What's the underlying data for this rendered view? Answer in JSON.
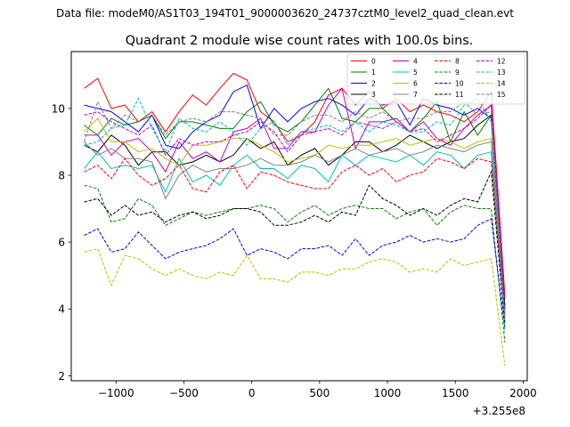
{
  "figure": {
    "suptitle": "Data file: modeM0/AS1T03_194T01_9000003620_24737cztM0_level2_quad_clean.evt"
  },
  "chart_data": {
    "type": "line",
    "title": "Quadrant 2 module wise count rates with 100.0s bins.",
    "xlabel": "",
    "ylabel": "",
    "x_offset_label": "+3.255e8",
    "xlim": [
      -1330,
      2030
    ],
    "ylim": [
      1.85,
      11.7
    ],
    "xticks": [
      -1000,
      -500,
      0,
      500,
      1000,
      1500,
      2000
    ],
    "xtick_labels": [
      "−1000",
      "−500",
      "0",
      "500",
      "1000",
      "1500",
      "2000"
    ],
    "yticks": [
      2,
      4,
      6,
      8,
      10
    ],
    "ytick_labels": [
      "2",
      "4",
      "6",
      "8",
      "10"
    ],
    "grid": false,
    "legend_position": "top-right",
    "x": [
      -1235,
      -1135,
      -1035,
      -935,
      -835,
      -735,
      -635,
      -535,
      -435,
      -335,
      -235,
      -135,
      -35,
      65,
      165,
      265,
      365,
      465,
      565,
      665,
      765,
      865,
      965,
      1065,
      1165,
      1265,
      1365,
      1465,
      1565,
      1665,
      1765,
      1865
    ],
    "series": [
      {
        "name": "0",
        "color": "#ff0000",
        "dash": false,
        "values": [
          10.6,
          10.9,
          10.0,
          10.1,
          9.6,
          9.9,
          9.3,
          9.9,
          10.4,
          10.1,
          10.6,
          11.05,
          10.85,
          9.9,
          9.6,
          9.0,
          9.2,
          9.6,
          10.4,
          10.6,
          10.1,
          10.5,
          10.0,
          10.3,
          9.9,
          10.1,
          9.9,
          9.8,
          9.6,
          9.9,
          10.5,
          4.4
        ]
      },
      {
        "name": "1",
        "color": "#008000",
        "dash": false,
        "values": [
          9.5,
          9.2,
          9.7,
          9.5,
          9.6,
          9.8,
          9.1,
          9.6,
          9.6,
          9.5,
          9.4,
          9.4,
          9.9,
          10.2,
          9.5,
          9.3,
          9.6,
          10.1,
          10.6,
          9.7,
          9.6,
          10.0,
          10.0,
          9.6,
          9.3,
          9.7,
          10.2,
          9.0,
          9.9,
          9.2,
          9.8,
          3.9
        ]
      },
      {
        "name": "2",
        "color": "#0000ff",
        "dash": false,
        "values": [
          10.1,
          10.0,
          9.9,
          9.6,
          9.3,
          9.8,
          8.9,
          8.8,
          9.3,
          9.6,
          9.8,
          10.5,
          10.7,
          9.4,
          10.0,
          9.6,
          10.0,
          10.2,
          10.3,
          10.1,
          9.8,
          10.3,
          10.1,
          10.2,
          9.5,
          10.3,
          10.1,
          10.0,
          9.8,
          10.0,
          9.7,
          4.0
        ]
      },
      {
        "name": "3",
        "color": "#000000",
        "dash": false,
        "values": [
          8.9,
          8.7,
          9.2,
          8.9,
          8.3,
          8.7,
          8.7,
          8.3,
          8.4,
          8.6,
          8.4,
          8.6,
          9.1,
          8.8,
          9.0,
          8.3,
          8.6,
          8.8,
          8.3,
          8.6,
          9.0,
          9.0,
          8.7,
          8.9,
          9.2,
          9.0,
          8.8,
          9.0,
          9.1,
          9.5,
          9.8,
          4.1
        ]
      },
      {
        "name": "4",
        "color": "#c000c0",
        "dash": false,
        "values": [
          9.2,
          9.2,
          8.6,
          9.0,
          9.1,
          8.7,
          8.1,
          9.0,
          8.5,
          8.7,
          8.4,
          9.3,
          9.4,
          9.7,
          8.8,
          8.8,
          9.3,
          9.3,
          10.1,
          10.6,
          8.8,
          9.6,
          9.6,
          9.7,
          9.3,
          9.6,
          9.1,
          8.9,
          9.4,
          9.8,
          10.1,
          4.3
        ]
      },
      {
        "name": "5",
        "color": "#00bfbf",
        "dash": false,
        "values": [
          8.2,
          8.7,
          8.2,
          8.3,
          8.2,
          8.3,
          7.5,
          8.5,
          7.8,
          8.0,
          7.7,
          8.3,
          8.6,
          8.2,
          8.2,
          7.9,
          8.3,
          8.2,
          7.8,
          8.6,
          8.3,
          8.6,
          8.5,
          8.4,
          8.6,
          8.3,
          8.7,
          8.6,
          8.2,
          8.6,
          8.7,
          3.6
        ]
      },
      {
        "name": "6",
        "color": "#bfbf00",
        "dash": false,
        "values": [
          9.3,
          9.7,
          9.0,
          9.0,
          8.7,
          8.8,
          8.5,
          8.3,
          8.9,
          8.9,
          9.0,
          9.1,
          9.1,
          8.9,
          8.7,
          8.4,
          8.5,
          8.6,
          8.9,
          8.8,
          8.9,
          8.9,
          9.0,
          9.1,
          8.9,
          9.0,
          9.1,
          9.0,
          8.8,
          9.0,
          9.1,
          3.8
        ]
      },
      {
        "name": "7",
        "color": "#808080",
        "dash": false,
        "values": [
          9.0,
          8.6,
          8.8,
          8.5,
          8.5,
          8.4,
          7.3,
          8.0,
          8.3,
          8.1,
          8.2,
          8.2,
          8.3,
          8.5,
          8.3,
          8.3,
          8.4,
          8.6,
          8.4,
          8.6,
          8.8,
          8.6,
          8.7,
          8.8,
          8.6,
          8.7,
          8.9,
          8.8,
          8.7,
          8.9,
          9.0,
          3.7
        ]
      },
      {
        "name": "8",
        "color": "#ff0000",
        "dash": true,
        "values": [
          8.1,
          8.3,
          7.9,
          8.5,
          8.0,
          7.7,
          7.9,
          8.3,
          7.6,
          7.5,
          8.1,
          8.3,
          7.6,
          8.1,
          8.0,
          7.8,
          7.7,
          7.6,
          7.6,
          8.1,
          8.3,
          8.0,
          8.2,
          7.8,
          8.0,
          8.1,
          8.5,
          8.4,
          8.2,
          8.5,
          8.4,
          3.6
        ]
      },
      {
        "name": "9",
        "color": "#008000",
        "dash": true,
        "values": [
          7.7,
          7.6,
          6.6,
          6.7,
          7.3,
          7.1,
          6.5,
          6.7,
          6.9,
          6.8,
          6.9,
          7.0,
          7.0,
          7.1,
          7.0,
          6.6,
          6.9,
          7.1,
          6.8,
          7.0,
          7.1,
          7.0,
          7.0,
          6.7,
          6.9,
          7.0,
          6.5,
          6.9,
          7.1,
          7.0,
          7.0,
          3.0
        ]
      },
      {
        "name": "10",
        "color": "#0000ff",
        "dash": true,
        "values": [
          6.2,
          6.4,
          5.7,
          5.8,
          6.3,
          5.9,
          5.5,
          5.7,
          5.8,
          5.9,
          6.1,
          6.4,
          5.6,
          5.8,
          5.7,
          5.5,
          5.8,
          5.8,
          5.9,
          5.6,
          6.1,
          5.6,
          5.9,
          6.0,
          6.2,
          6.0,
          6.1,
          6.0,
          6.1,
          6.5,
          6.7,
          3.4
        ]
      },
      {
        "name": "11",
        "color": "#000000",
        "dash": true,
        "values": [
          7.2,
          7.3,
          6.8,
          7.1,
          6.8,
          6.9,
          6.6,
          6.8,
          6.9,
          6.7,
          6.8,
          7.0,
          7.0,
          6.9,
          6.5,
          6.5,
          6.6,
          6.8,
          6.6,
          6.9,
          6.8,
          7.7,
          7.3,
          7.1,
          6.8,
          7.0,
          6.8,
          7.1,
          7.3,
          7.2,
          8.1,
          3.5
        ]
      },
      {
        "name": "12",
        "color": "#c000c0",
        "dash": true,
        "values": [
          9.8,
          9.9,
          9.6,
          9.4,
          9.2,
          9.5,
          8.6,
          9.1,
          8.9,
          9.0,
          9.0,
          9.2,
          9.3,
          9.6,
          9.3,
          8.7,
          9.2,
          9.3,
          9.4,
          9.2,
          9.6,
          9.5,
          9.4,
          9.6,
          9.3,
          9.4,
          9.0,
          9.2,
          9.4,
          9.7,
          10.1,
          3.8
        ]
      },
      {
        "name": "13",
        "color": "#00bfbf",
        "dash": true,
        "values": [
          8.9,
          9.0,
          9.4,
          9.5,
          10.3,
          9.4,
          8.7,
          9.7,
          9.4,
          9.3,
          9.6,
          9.3,
          8.9,
          9.4,
          9.6,
          8.9,
          9.3,
          9.4,
          9.5,
          9.3,
          9.6,
          9.3,
          9.6,
          9.5,
          9.3,
          9.3,
          9.6,
          9.5,
          10.1,
          10.3,
          9.6,
          3.3
        ]
      },
      {
        "name": "14",
        "color": "#bfbf00",
        "dash": true,
        "values": [
          5.7,
          5.8,
          4.7,
          5.6,
          5.5,
          5.2,
          5.0,
          5.2,
          5.0,
          4.9,
          5.1,
          5.0,
          5.6,
          4.9,
          4.9,
          4.8,
          5.1,
          5.1,
          5.0,
          5.2,
          5.2,
          5.4,
          5.5,
          5.4,
          5.1,
          5.2,
          5.1,
          5.5,
          5.3,
          5.4,
          5.5,
          2.3
        ]
      },
      {
        "name": "15",
        "color": "#808080",
        "dash": true,
        "values": [
          9.0,
          10.2,
          9.4,
          9.8,
          9.6,
          9.8,
          9.2,
          9.6,
          9.7,
          9.6,
          9.9,
          9.9,
          9.8,
          9.7,
          9.2,
          9.2,
          9.6,
          9.8,
          9.8,
          9.6,
          9.9,
          9.7,
          9.9,
          9.6,
          9.7,
          9.7,
          9.9,
          9.9,
          10.2,
          9.8,
          9.9,
          3.7
        ]
      }
    ]
  }
}
